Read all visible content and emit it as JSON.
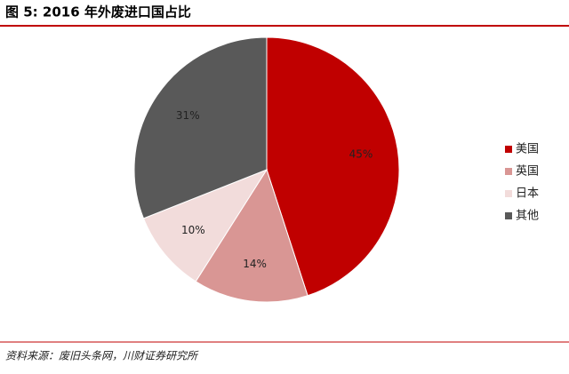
{
  "chart_data": {
    "type": "pie",
    "title": "图 5:   2016 年外废进口国占比",
    "categories": [
      "美国",
      "英国",
      "日本",
      "其他"
    ],
    "values": [
      45,
      14,
      10,
      31
    ],
    "value_labels": [
      "45%",
      "14%",
      "10%",
      "31%"
    ],
    "colors": [
      "#c00000",
      "#d99694",
      "#f2dcdb",
      "#595959"
    ],
    "source": "资料来源：废旧头条网，川财证券研究所"
  }
}
